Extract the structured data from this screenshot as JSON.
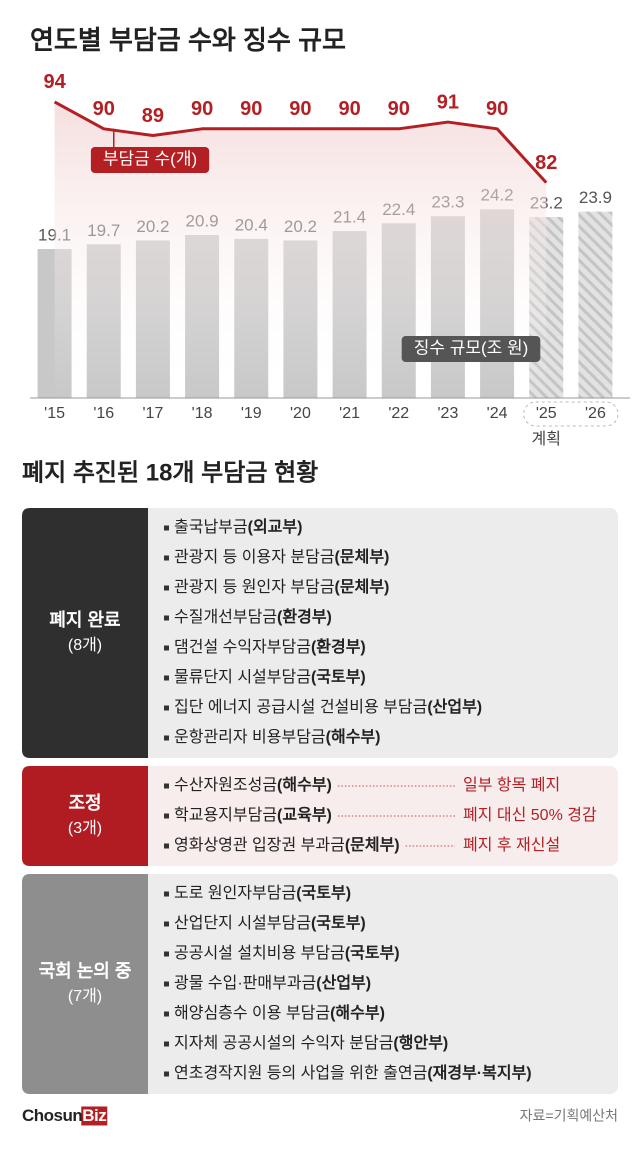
{
  "chart_data": {
    "type": "bar",
    "title": "연도별 부담금 수와 징수 규모",
    "categories": [
      "'15",
      "'16",
      "'17",
      "'18",
      "'19",
      "'20",
      "'21",
      "'22",
      "'23",
      "'24",
      "'25",
      "'26"
    ],
    "planned": [
      "'25",
      "'26"
    ],
    "annotation": "계획",
    "series": [
      {
        "name": "징수 규모(조 원)",
        "type": "bar",
        "color": "#c8c8c8",
        "values": [
          19.1,
          19.7,
          20.2,
          20.9,
          20.4,
          20.2,
          21.4,
          22.4,
          23.3,
          24.2,
          23.2,
          23.9
        ]
      },
      {
        "name": "부담금 수(개)",
        "type": "line",
        "axis": "y2",
        "color": "#b41f24",
        "values": [
          94,
          90,
          89,
          90,
          90,
          90,
          90,
          90,
          91,
          90,
          82,
          null
        ]
      }
    ],
    "ylim": [
      0,
      30
    ],
    "y2lim": [
      50,
      100
    ]
  },
  "section_title": "폐지 추진된 18개 부담금 현황",
  "table": [
    {
      "title": "폐지 완료",
      "count": "(8개)",
      "items": [
        {
          "name": "출국납부금",
          "agency": "(외교부)"
        },
        {
          "name": "관광지 등 이용자 분담금",
          "agency": "(문체부)"
        },
        {
          "name": "관광지 등 원인자 부담금",
          "agency": "(문체부)"
        },
        {
          "name": "수질개선부담금",
          "agency": "(환경부)"
        },
        {
          "name": "댐건설 수익자부담금",
          "agency": "(환경부)"
        },
        {
          "name": "물류단지 시설부담금",
          "agency": "(국토부)"
        },
        {
          "name": "집단 에너지 공급시설 건설비용 부담금",
          "agency": "(산업부)"
        },
        {
          "name": "운항관리자 비용부담금",
          "agency": "(해수부)"
        }
      ]
    },
    {
      "title": "조정",
      "count": "(3개)",
      "items": [
        {
          "name": "수산자원조성금",
          "agency": "(해수부)",
          "note": "일부 항목 폐지"
        },
        {
          "name": "학교용지부담금",
          "agency": "(교육부)",
          "note": "폐지 대신 50% 경감"
        },
        {
          "name": "영화상영관 입장권 부과금",
          "agency": "(문체부)",
          "note": "폐지 후 재신설"
        }
      ]
    },
    {
      "title": "국회 논의 중",
      "count": "(7개)",
      "items": [
        {
          "name": "도로 원인자부담금",
          "agency": "(국토부)"
        },
        {
          "name": "산업단지 시설부담금",
          "agency": "(국토부)"
        },
        {
          "name": "공공시설 설치비용 부담금",
          "agency": "(국토부)"
        },
        {
          "name": "광물 수입·판매부과금",
          "agency": "(산업부)"
        },
        {
          "name": "해양심층수 이용 부담금",
          "agency": "(해수부)"
        },
        {
          "name": "지자체 공공시설의 수익자 분담금",
          "agency": "(행안부)"
        },
        {
          "name": "연초경작지원 등의 사업을 위한 출연금",
          "agency": "(재경부·복지부)"
        }
      ]
    }
  ],
  "logo": {
    "main": "Chosun",
    "badge": "Biz"
  },
  "source": "자료=기획예산처"
}
